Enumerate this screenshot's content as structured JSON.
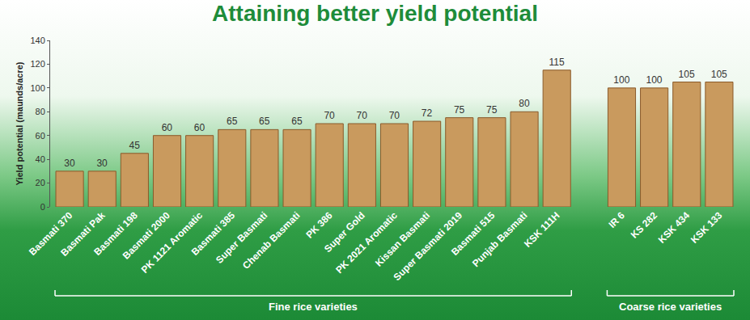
{
  "chart_data": {
    "type": "bar",
    "title": "Attaining better yield potential",
    "y_label": "Yield potential (maunds/acre)",
    "categories": [
      "Basmati 370",
      "Basmati Pak",
      "Basmati 198",
      "Basmati 2000",
      "PK 1121 Aromatic",
      "Basmati 385",
      "Super Basmati",
      "Chenab Basmati",
      "PK 386",
      "Super Gold",
      "PK 2021 Aromatic",
      "Kissan Basmati",
      "Super Basmati 2019",
      "Basmati 515",
      "Punjab Basmati",
      "KSK 111H",
      null,
      "IR 6",
      "KS 282",
      "KSK 434",
      "KSK 133"
    ],
    "values": [
      30,
      30,
      45,
      60,
      60,
      65,
      65,
      65,
      70,
      70,
      70,
      72,
      75,
      75,
      80,
      115,
      null,
      100,
      100,
      105,
      105
    ],
    "color": "#c99a5e",
    "ylim": [
      0,
      140
    ],
    "yticks": [
      0,
      20,
      40,
      60,
      80,
      100,
      120,
      140
    ],
    "grid": false,
    "data_labels": true,
    "annotations": [
      "Fine rice varieties",
      "Coarse rice varieties"
    ]
  }
}
